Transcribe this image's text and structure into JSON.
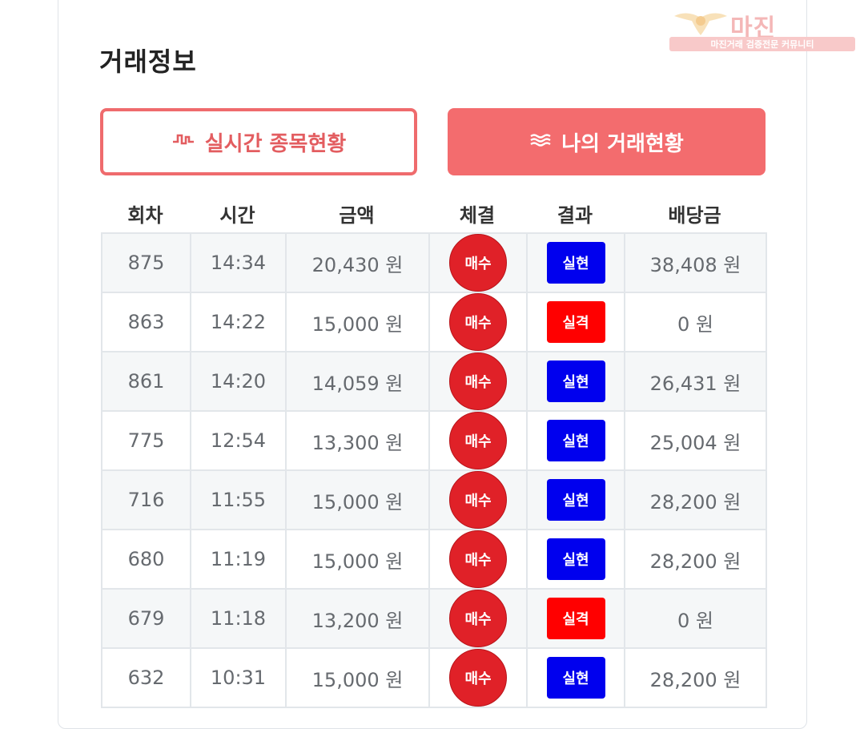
{
  "watermark": {
    "brand": "마진",
    "tagline": "마진거래 검증전문 커뮤니티"
  },
  "section": {
    "title": "거래정보"
  },
  "tabs": {
    "realtime": {
      "icon": "pulse-icon",
      "label": "실시간 종목현황"
    },
    "mytrade": {
      "icon": "waves-icon",
      "label": "나의 거래현황"
    }
  },
  "table": {
    "headers": [
      "회차",
      "시간",
      "금액",
      "체결",
      "결과",
      "배당금"
    ],
    "rows": [
      {
        "round": "875",
        "time": "14:34",
        "amount": "20,430 원",
        "exec": "매수",
        "result": "실현",
        "payout": "38,408 원"
      },
      {
        "round": "863",
        "time": "14:22",
        "amount": "15,000 원",
        "exec": "매수",
        "result": "실격",
        "payout": "0 원"
      },
      {
        "round": "861",
        "time": "14:20",
        "amount": "14,059 원",
        "exec": "매수",
        "result": "실현",
        "payout": "26,431 원"
      },
      {
        "round": "775",
        "time": "12:54",
        "amount": "13,300 원",
        "exec": "매수",
        "result": "실현",
        "payout": "25,004 원"
      },
      {
        "round": "716",
        "time": "11:55",
        "amount": "15,000 원",
        "exec": "매수",
        "result": "실현",
        "payout": "28,200 원"
      },
      {
        "round": "680",
        "time": "11:19",
        "amount": "15,000 원",
        "exec": "매수",
        "result": "실현",
        "payout": "28,200 원"
      },
      {
        "round": "679",
        "time": "11:18",
        "amount": "13,200 원",
        "exec": "매수",
        "result": "실격",
        "payout": "0 원"
      },
      {
        "round": "632",
        "time": "10:31",
        "amount": "15,000 원",
        "exec": "매수",
        "result": "실현",
        "payout": "28,200 원"
      }
    ]
  },
  "colors": {
    "accent": "#f36c6e",
    "buy_badge": "#e02128",
    "result_win": "#0000ee",
    "result_lose": "#ff0000"
  },
  "result_colors": {
    "실현": "#0000ee",
    "실격": "#ff0000"
  }
}
